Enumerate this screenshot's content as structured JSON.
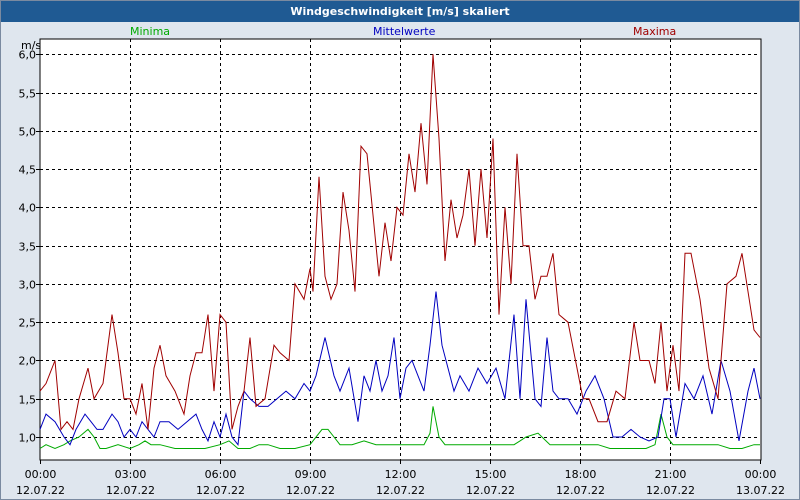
{
  "window": {
    "title": "Windgeschwindigkeit [m/s] skaliert"
  },
  "colors": {
    "plot_bg": "#ffffff",
    "grid": "#000000",
    "minima": "#00aa00",
    "mittelwerte": "#0000c0",
    "maxima": "#a00000"
  },
  "chart_data": {
    "type": "line",
    "title": "Windgeschwindigkeit [m/s] skaliert",
    "ylabel": "m/s",
    "xlabel": "",
    "ylim": [
      0.7,
      6.2
    ],
    "xlim": [
      0,
      24
    ],
    "grid": true,
    "legend_position": "top",
    "y_ticks": [
      {
        "value": 1.0,
        "label": "1,0"
      },
      {
        "value": 1.5,
        "label": "1,5"
      },
      {
        "value": 2.0,
        "label": "2,0"
      },
      {
        "value": 2.5,
        "label": "2,5"
      },
      {
        "value": 3.0,
        "label": "3,0"
      },
      {
        "value": 3.5,
        "label": "3,5"
      },
      {
        "value": 4.0,
        "label": "4,0"
      },
      {
        "value": 4.5,
        "label": "4,5"
      },
      {
        "value": 5.0,
        "label": "5,0"
      },
      {
        "value": 5.5,
        "label": "5,5"
      },
      {
        "value": 6.0,
        "label": "6,0"
      }
    ],
    "x_ticks": [
      {
        "value": 0,
        "time": "00:00",
        "date": "12.07.22"
      },
      {
        "value": 3,
        "time": "03:00",
        "date": "12.07.22"
      },
      {
        "value": 6,
        "time": "06:00",
        "date": "12.07.22"
      },
      {
        "value": 9,
        "time": "09:00",
        "date": "12.07.22"
      },
      {
        "value": 12,
        "time": "12:00",
        "date": "12.07.22"
      },
      {
        "value": 15,
        "time": "15:00",
        "date": "12.07.22"
      },
      {
        "value": 18,
        "time": "18:00",
        "date": "12.07.22"
      },
      {
        "value": 21,
        "time": "21:00",
        "date": "12.07.22"
      },
      {
        "value": 24,
        "time": "00:00",
        "date": "13.07.22"
      }
    ],
    "series": [
      {
        "name": "Minima",
        "x": [
          0,
          0.2,
          0.5,
          0.8,
          1,
          1.3,
          1.6,
          1.8,
          2,
          2.2,
          2.6,
          3,
          3.3,
          3.5,
          3.7,
          4,
          4.5,
          5,
          5.5,
          6,
          6.3,
          6.6,
          7,
          7.3,
          7.6,
          8,
          8.5,
          9,
          9.4,
          9.6,
          9.8,
          10,
          10.4,
          10.8,
          11.2,
          11.6,
          12,
          12.4,
          12.8,
          13,
          13.1,
          13.3,
          13.5,
          13.8,
          14.2,
          14.6,
          15,
          15.4,
          15.8,
          16,
          16.2,
          16.6,
          17,
          17.4,
          17.8,
          18.2,
          18.6,
          19,
          19.4,
          19.8,
          20.2,
          20.5,
          20.7,
          20.9,
          21.1,
          21.4,
          21.8,
          22.2,
          22.6,
          23,
          23.4,
          23.8,
          24
        ],
        "values": [
          0.85,
          0.9,
          0.85,
          0.9,
          0.95,
          1.0,
          1.1,
          1.0,
          0.85,
          0.85,
          0.9,
          0.85,
          0.9,
          0.95,
          0.9,
          0.9,
          0.85,
          0.85,
          0.85,
          0.9,
          0.95,
          0.85,
          0.85,
          0.9,
          0.9,
          0.85,
          0.85,
          0.9,
          1.1,
          1.1,
          1.0,
          0.9,
          0.9,
          0.95,
          0.9,
          0.9,
          0.9,
          0.9,
          0.9,
          1.05,
          1.4,
          1.0,
          0.9,
          0.9,
          0.9,
          0.9,
          0.9,
          0.9,
          0.9,
          0.95,
          1.0,
          1.05,
          0.9,
          0.9,
          0.9,
          0.9,
          0.9,
          0.85,
          0.85,
          0.85,
          0.85,
          0.9,
          1.3,
          1.0,
          0.9,
          0.9,
          0.9,
          0.9,
          0.9,
          0.85,
          0.85,
          0.9,
          0.9
        ]
      },
      {
        "name": "Mittelwerte",
        "x": [
          0,
          0.2,
          0.5,
          0.8,
          1,
          1.2,
          1.5,
          1.7,
          1.9,
          2.1,
          2.4,
          2.6,
          2.8,
          3,
          3.2,
          3.4,
          3.6,
          3.8,
          4,
          4.3,
          4.6,
          4.9,
          5.2,
          5.4,
          5.6,
          5.8,
          6,
          6.2,
          6.4,
          6.6,
          6.8,
          7,
          7.3,
          7.6,
          7.9,
          8.2,
          8.5,
          8.8,
          9,
          9.2,
          9.5,
          9.8,
          10,
          10.3,
          10.6,
          10.8,
          11,
          11.2,
          11.4,
          11.6,
          11.8,
          12,
          12.2,
          12.4,
          12.6,
          12.8,
          13,
          13.2,
          13.4,
          13.6,
          13.8,
          14,
          14.3,
          14.6,
          14.9,
          15.2,
          15.5,
          15.8,
          16,
          16.2,
          16.5,
          16.7,
          16.9,
          17.1,
          17.3,
          17.6,
          17.9,
          18.2,
          18.5,
          18.8,
          19.1,
          19.4,
          19.7,
          20,
          20.3,
          20.6,
          20.8,
          21,
          21.2,
          21.5,
          21.8,
          22.1,
          22.4,
          22.7,
          23,
          23.3,
          23.6,
          23.8,
          24
        ],
        "values": [
          1.1,
          1.3,
          1.2,
          1.0,
          0.9,
          1.1,
          1.3,
          1.2,
          1.1,
          1.1,
          1.3,
          1.2,
          1.0,
          1.1,
          1.0,
          1.2,
          1.1,
          1.0,
          1.2,
          1.2,
          1.1,
          1.2,
          1.3,
          1.1,
          0.95,
          1.2,
          1.0,
          1.3,
          1.0,
          0.9,
          1.6,
          1.5,
          1.4,
          1.4,
          1.5,
          1.6,
          1.5,
          1.7,
          1.6,
          1.8,
          2.3,
          1.8,
          1.6,
          1.9,
          1.2,
          1.8,
          1.6,
          2.0,
          1.6,
          1.8,
          2.3,
          1.5,
          1.9,
          2.0,
          1.8,
          1.6,
          2.2,
          2.9,
          2.2,
          1.9,
          1.6,
          1.8,
          1.6,
          1.9,
          1.7,
          1.9,
          1.5,
          2.6,
          1.5,
          2.8,
          1.5,
          1.4,
          2.3,
          1.6,
          1.5,
          1.5,
          1.3,
          1.6,
          1.8,
          1.5,
          1.0,
          1.0,
          1.1,
          1.0,
          0.95,
          1.0,
          1.5,
          1.5,
          1.0,
          1.7,
          1.5,
          1.8,
          1.3,
          2.0,
          1.6,
          0.95,
          1.6,
          1.9,
          1.5
        ]
      },
      {
        "name": "Maxima",
        "x": [
          0,
          0.2,
          0.5,
          0.7,
          0.9,
          1.1,
          1.3,
          1.6,
          1.8,
          2.1,
          2.4,
          2.6,
          2.8,
          3,
          3.2,
          3.4,
          3.6,
          3.8,
          4,
          4.2,
          4.5,
          4.8,
          5,
          5.2,
          5.4,
          5.6,
          5.8,
          6,
          6.2,
          6.4,
          6.6,
          6.8,
          7,
          7.2,
          7.5,
          7.8,
          8,
          8.3,
          8.5,
          8.8,
          9,
          9.1,
          9.3,
          9.5,
          9.7,
          9.9,
          10.1,
          10.3,
          10.5,
          10.7,
          10.9,
          11.1,
          11.3,
          11.5,
          11.7,
          11.9,
          12.1,
          12.3,
          12.5,
          12.7,
          12.9,
          13.1,
          13.3,
          13.5,
          13.7,
          13.9,
          14.1,
          14.3,
          14.5,
          14.7,
          14.9,
          15.1,
          15.3,
          15.5,
          15.7,
          15.9,
          16.1,
          16.3,
          16.5,
          16.7,
          16.9,
          17.1,
          17.3,
          17.6,
          17.9,
          18.1,
          18.3,
          18.6,
          18.9,
          19.2,
          19.5,
          19.8,
          20,
          20.3,
          20.5,
          20.7,
          20.9,
          21.1,
          21.3,
          21.5,
          21.7,
          22,
          22.3,
          22.6,
          22.9,
          23.2,
          23.4,
          23.6,
          23.8,
          24
        ],
        "values": [
          1.6,
          1.7,
          2.0,
          1.1,
          1.2,
          1.1,
          1.5,
          1.9,
          1.5,
          1.7,
          2.6,
          2.1,
          1.5,
          1.5,
          1.3,
          1.7,
          1.1,
          1.9,
          2.2,
          1.8,
          1.6,
          1.3,
          1.8,
          2.1,
          2.1,
          2.6,
          1.6,
          2.6,
          2.5,
          1.1,
          1.4,
          1.6,
          2.3,
          1.4,
          1.5,
          2.2,
          2.1,
          2.0,
          3.0,
          2.8,
          3.2,
          2.9,
          4.4,
          3.1,
          2.8,
          3.0,
          4.2,
          3.7,
          2.9,
          4.8,
          4.7,
          3.9,
          3.1,
          3.8,
          3.3,
          4.0,
          3.9,
          4.7,
          4.2,
          5.1,
          4.3,
          6.0,
          4.9,
          3.3,
          4.1,
          3.6,
          3.9,
          4.5,
          3.5,
          4.5,
          3.6,
          4.9,
          2.6,
          4.0,
          3.0,
          4.7,
          3.5,
          3.5,
          2.8,
          3.1,
          3.1,
          3.4,
          2.6,
          2.5,
          1.9,
          1.5,
          1.5,
          1.2,
          1.2,
          1.6,
          1.5,
          2.5,
          2.0,
          2.0,
          1.7,
          2.5,
          1.6,
          2.2,
          1.6,
          3.4,
          3.4,
          2.8,
          1.9,
          1.5,
          3.0,
          3.1,
          3.4,
          2.9,
          2.4,
          2.3
        ]
      }
    ]
  }
}
